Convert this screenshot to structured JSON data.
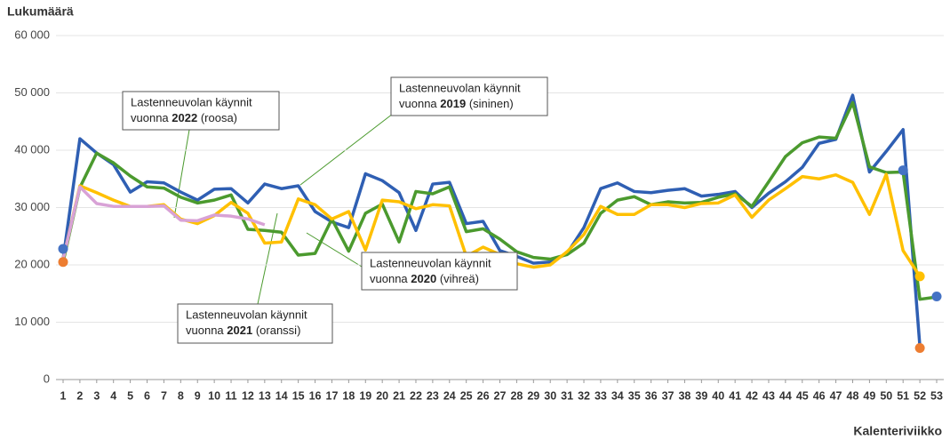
{
  "chart_data": {
    "type": "line",
    "y_axis_label": "Lukumäärä",
    "x_axis_label": "Kalenteriviikko",
    "x": [
      1,
      2,
      3,
      4,
      5,
      6,
      7,
      8,
      9,
      10,
      11,
      12,
      13,
      14,
      15,
      16,
      17,
      18,
      19,
      20,
      21,
      22,
      23,
      24,
      25,
      26,
      27,
      28,
      29,
      30,
      31,
      32,
      33,
      34,
      35,
      36,
      37,
      38,
      39,
      40,
      41,
      42,
      43,
      44,
      45,
      46,
      47,
      48,
      49,
      50,
      51,
      52,
      53
    ],
    "xlim": [
      1,
      53
    ],
    "xticks": [
      1,
      2,
      3,
      4,
      5,
      6,
      7,
      8,
      9,
      10,
      11,
      12,
      13,
      14,
      15,
      16,
      17,
      18,
      19,
      20,
      21,
      22,
      23,
      24,
      25,
      26,
      27,
      28,
      29,
      30,
      31,
      32,
      33,
      34,
      35,
      36,
      37,
      38,
      39,
      40,
      41,
      42,
      43,
      44,
      45,
      46,
      47,
      48,
      49,
      50,
      51,
      52,
      53
    ],
    "ylim": [
      0,
      60000
    ],
    "yticks": [
      0,
      {
        "value": 10000,
        "label": "10 000"
      },
      {
        "value": 20000,
        "label": "20 000"
      },
      {
        "value": 30000,
        "label": "30 000"
      },
      {
        "value": 40000,
        "label": "40 000"
      },
      {
        "value": 50000,
        "label": "50 000"
      },
      {
        "value": 60000,
        "label": "60 000"
      }
    ],
    "grid": true,
    "series": [
      {
        "name": "2019",
        "color": "#2f5fb3",
        "values": [
          21000,
          42000,
          39500,
          37500,
          32700,
          34500,
          34300,
          32700,
          31300,
          33200,
          33300,
          30800,
          34100,
          33300,
          33800,
          29300,
          27500,
          26500,
          35900,
          34700,
          32600,
          26000,
          34100,
          34400,
          27200,
          27600,
          22500,
          21500,
          20300,
          20500,
          22000,
          26500,
          33300,
          34300,
          32800,
          32600,
          33000,
          33300,
          32000,
          32300,
          32800,
          30000,
          32500,
          34500,
          37000,
          41200,
          41900,
          49600,
          36200,
          39800,
          43600,
          5800,
          null
        ]
      },
      {
        "name": "2020",
        "color": "#4b9a2e",
        "values": [
          20500,
          33500,
          39500,
          37800,
          35500,
          33600,
          33400,
          31800,
          30800,
          31300,
          32200,
          26200,
          26000,
          25700,
          21700,
          22000,
          28000,
          22400,
          29000,
          30600,
          24000,
          32800,
          32400,
          33600,
          25800,
          26300,
          24500,
          22300,
          21300,
          21000,
          21800,
          23800,
          29000,
          31300,
          31900,
          30500,
          31000,
          30800,
          30900,
          31800,
          32400,
          30200,
          34500,
          38900,
          41300,
          42300,
          42100,
          48300,
          37100,
          36100,
          36200,
          14000,
          14400
        ]
      },
      {
        "name": "2021",
        "color": "#ffc000",
        "values": [
          21000,
          33800,
          32600,
          31300,
          30200,
          30200,
          30500,
          28000,
          27200,
          28600,
          30900,
          29000,
          23800,
          24000,
          31500,
          30500,
          28000,
          29300,
          22600,
          31300,
          31000,
          29800,
          30500,
          30300,
          21500,
          23100,
          21800,
          20200,
          19600,
          20000,
          22300,
          25300,
          30200,
          28800,
          28800,
          30500,
          30500,
          30000,
          30700,
          30800,
          32200,
          28300,
          31300,
          33300,
          35400,
          35000,
          35700,
          34400,
          28800,
          35800,
          22500,
          18000,
          null
        ]
      },
      {
        "name": "2022",
        "color": "#d8a2d6",
        "values": [
          21000,
          33600,
          30700,
          30200,
          30200,
          30200,
          30300,
          27800,
          27700,
          28700,
          28500,
          28000,
          27000,
          null,
          null,
          null,
          null,
          null,
          null,
          null,
          null,
          null,
          null,
          null,
          null,
          null,
          null,
          null,
          null,
          null,
          null,
          null,
          null,
          null,
          null,
          null,
          null,
          null,
          null,
          null,
          null,
          null,
          null,
          null,
          null,
          null,
          null,
          null,
          null,
          null,
          null,
          null,
          null
        ]
      }
    ],
    "points": [
      {
        "x": 1,
        "y": 22800,
        "color": "#4472c4"
      },
      {
        "x": 1,
        "y": 20500,
        "color": "#ed7d31"
      },
      {
        "x": 51,
        "y": 36500,
        "color": "#4472c4"
      },
      {
        "x": 52,
        "y": 18000,
        "color": "#ffc000"
      },
      {
        "x": 52,
        "y": 5500,
        "color": "#ed7d31"
      },
      {
        "x": 53,
        "y": 14500,
        "color": "#4472c4"
      }
    ],
    "annotations": [
      {
        "line1": "Lastenneuvolan käynnit",
        "prefix": "vuonna",
        "year": "2022",
        "suffix": "(roosa)"
      },
      {
        "line1": "Lastenneuvolan käynnit",
        "prefix": "vuonna",
        "year": "2019",
        "suffix": "(sininen)"
      },
      {
        "line1": "Lastenneuvolan käynnit",
        "prefix": "vuonna",
        "year": "2020",
        "suffix": "(vihreä)"
      },
      {
        "line1": "Lastenneuvolan käynnit",
        "prefix": "vuonna",
        "year": "2021",
        "suffix": "(oranssi)"
      }
    ]
  }
}
